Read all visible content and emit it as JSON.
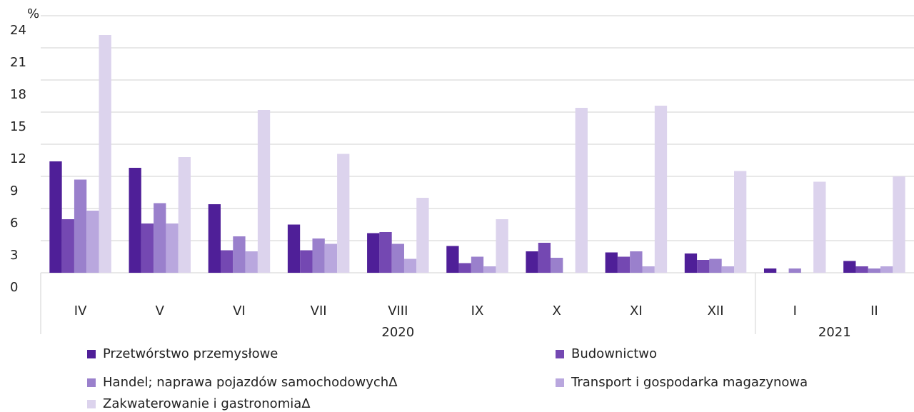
{
  "chart_data": {
    "type": "bar",
    "y_label": "%",
    "categories": [
      "IV",
      "V",
      "VI",
      "VII",
      "VIII",
      "IX",
      "X",
      "XI",
      "XII",
      "I",
      "II"
    ],
    "groups": [
      {
        "label": "2020",
        "span": [
          0,
          8
        ]
      },
      {
        "label": "2021",
        "span": [
          9,
          10
        ]
      }
    ],
    "series": [
      {
        "name": "Przetwórstwo przemysłowe",
        "color": "#4f1f98",
        "values": [
          10.4,
          9.8,
          6.4,
          4.5,
          3.7,
          2.5,
          2.0,
          1.9,
          1.8,
          0.4,
          1.1
        ]
      },
      {
        "name": "Budownictwo",
        "color": "#7448b2",
        "values": [
          5.0,
          4.6,
          2.1,
          2.1,
          3.8,
          0.9,
          2.8,
          1.5,
          1.2,
          null,
          0.6
        ]
      },
      {
        "name": "Handel; naprawa pojazdów samochodowychΔ",
        "color": "#9a80cc",
        "values": [
          8.7,
          6.5,
          3.4,
          3.2,
          2.7,
          1.5,
          1.4,
          2.0,
          1.3,
          0.4,
          0.4
        ]
      },
      {
        "name": "Transport i gospodarka magazynowa",
        "color": "#b9a7de",
        "values": [
          5.8,
          4.6,
          2.0,
          2.7,
          1.3,
          0.6,
          null,
          0.6,
          0.6,
          null,
          0.6
        ]
      },
      {
        "name": "Zakwaterowanie i gastronomiaΔ",
        "color": "#dcd3ed",
        "values": [
          22.2,
          10.8,
          15.2,
          11.1,
          7.0,
          5.0,
          15.4,
          15.6,
          9.5,
          8.5,
          9.0
        ]
      }
    ],
    "ylim": [
      0,
      24
    ],
    "yticks": [
      0,
      3,
      6,
      9,
      12,
      15,
      18,
      21,
      24
    ],
    "grid": true
  }
}
